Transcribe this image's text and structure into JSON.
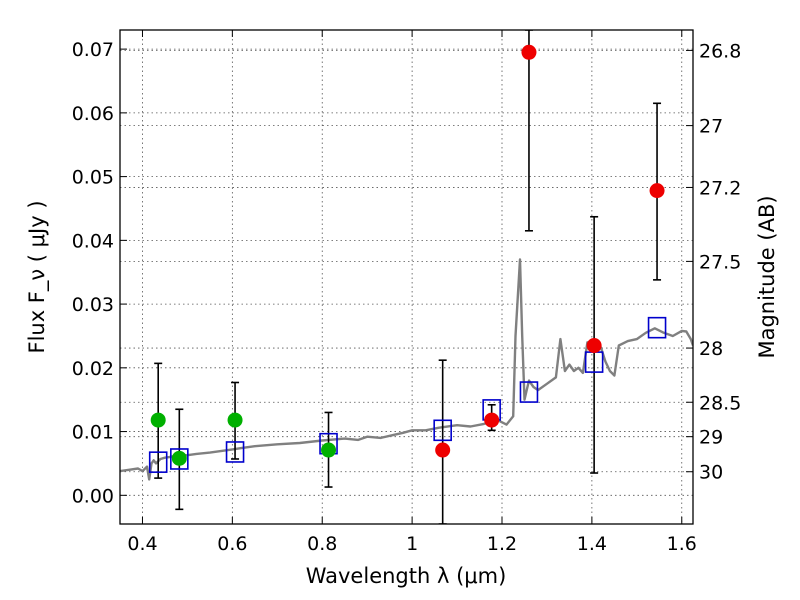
{
  "chart_data": {
    "type": "scatter",
    "title": "",
    "xlabel": "Wavelength  λ (μm)",
    "ylabel": "Flux  F_ν  ( μJy )",
    "ylabel_right": "Magnitude (AB)",
    "xlim": [
      0.35,
      1.625
    ],
    "ylim": [
      -0.0045,
      0.073
    ],
    "grid": true,
    "x_ticks": [
      0.4,
      0.6,
      0.8,
      1.0,
      1.2,
      1.4,
      1.6
    ],
    "x_tick_labels": [
      "0.4",
      "0.6",
      "0.8",
      "1",
      "1.2",
      "1.4",
      "1.6"
    ],
    "y_ticks": [
      0.0,
      0.01,
      0.02,
      0.03,
      0.04,
      0.05,
      0.06,
      0.07
    ],
    "y_tick_labels": [
      "0.00",
      "0.01",
      "0.02",
      "0.03",
      "0.04",
      "0.05",
      "0.06",
      "0.07"
    ],
    "right_ticks": [
      {
        "label": "26.8",
        "flux": 0.0698
      },
      {
        "label": "27",
        "flux": 0.058
      },
      {
        "label": "27.2",
        "flux": 0.0483
      },
      {
        "label": "27.5",
        "flux": 0.0367
      },
      {
        "label": "28",
        "flux": 0.0231
      },
      {
        "label": "28.5",
        "flux": 0.0146
      },
      {
        "label": "29",
        "flux": 0.0092
      },
      {
        "label": "30",
        "flux": 0.0037
      }
    ],
    "colors": {
      "model": "#808080",
      "model_phot": "#0000cc",
      "green": "#00b000",
      "red": "#ee0000",
      "errorbar": "#000000"
    },
    "series": [
      {
        "name": "model spectrum",
        "kind": "line",
        "x": [
          0.35,
          0.37,
          0.39,
          0.4,
          0.41,
          0.415,
          0.42,
          0.425,
          0.43,
          0.44,
          0.45,
          0.46,
          0.48,
          0.5,
          0.52,
          0.55,
          0.58,
          0.6,
          0.62,
          0.65,
          0.7,
          0.75,
          0.8,
          0.85,
          0.88,
          0.9,
          0.93,
          0.96,
          0.98,
          1.0,
          1.03,
          1.06,
          1.1,
          1.13,
          1.16,
          1.19,
          1.21,
          1.225,
          1.23,
          1.24,
          1.245,
          1.25,
          1.255,
          1.26,
          1.27,
          1.28,
          1.3,
          1.32,
          1.33,
          1.34,
          1.35,
          1.36,
          1.37,
          1.38,
          1.39,
          1.4,
          1.42,
          1.43,
          1.44,
          1.45,
          1.46,
          1.48,
          1.5,
          1.52,
          1.54,
          1.56,
          1.58,
          1.6,
          1.61,
          1.62,
          1.625
        ],
        "y": [
          0.0038,
          0.004,
          0.0042,
          0.0038,
          0.0045,
          0.0025,
          0.005,
          0.0055,
          0.005,
          0.0057,
          0.0059,
          0.006,
          0.0063,
          0.0063,
          0.0065,
          0.0067,
          0.007,
          0.0072,
          0.0074,
          0.0077,
          0.008,
          0.0082,
          0.0086,
          0.0089,
          0.0087,
          0.0092,
          0.009,
          0.0095,
          0.0098,
          0.0102,
          0.0102,
          0.0106,
          0.011,
          0.0108,
          0.0112,
          0.0118,
          0.0111,
          0.0124,
          0.025,
          0.037,
          0.025,
          0.015,
          0.0165,
          0.018,
          0.017,
          0.0165,
          0.0175,
          0.0185,
          0.0245,
          0.0195,
          0.0205,
          0.0195,
          0.02,
          0.0192,
          0.024,
          0.0235,
          0.0232,
          0.021,
          0.0195,
          0.0188,
          0.0235,
          0.0242,
          0.0245,
          0.0255,
          0.0262,
          0.0255,
          0.025,
          0.0258,
          0.0257,
          0.0245,
          0.0235
        ]
      },
      {
        "name": "model photometry",
        "kind": "open-square",
        "x": [
          0.435,
          0.482,
          0.606,
          0.814,
          1.068,
          1.177,
          1.26,
          1.405,
          1.545
        ],
        "y": [
          0.0052,
          0.0057,
          0.0068,
          0.0081,
          0.0102,
          0.0134,
          0.0162,
          0.0209,
          0.0263
        ]
      },
      {
        "name": "observed (green)",
        "kind": "filled-circle",
        "x": [
          0.435,
          0.482,
          0.606,
          0.814
        ],
        "y": [
          0.0118,
          0.0058,
          0.0118,
          0.0071
        ],
        "err_low": [
          0.0027,
          -0.0022,
          0.0057,
          0.0013
        ],
        "err_high": [
          0.0207,
          0.0135,
          0.0177,
          0.013
        ]
      },
      {
        "name": "observed (red)",
        "kind": "filled-circle",
        "x": [
          1.068,
          1.177,
          1.26,
          1.405,
          1.545
        ],
        "y": [
          0.0071,
          0.0118,
          0.0695,
          0.0235,
          0.0478
        ],
        "err_low": [
          -0.0045,
          0.0102,
          0.0415,
          0.0035,
          0.0338
        ],
        "err_high": [
          0.0212,
          0.0142,
          0.073,
          0.0437,
          0.0615
        ]
      }
    ]
  }
}
